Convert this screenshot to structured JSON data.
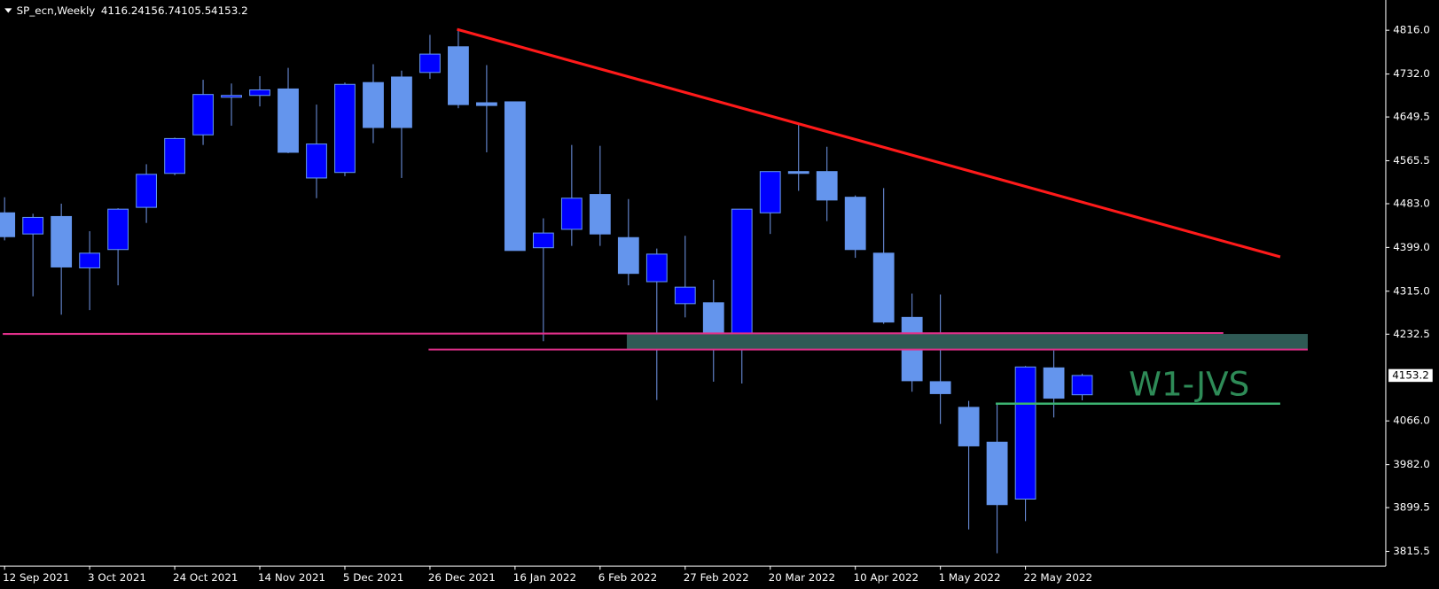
{
  "chart_data": {
    "type": "candlestick",
    "symbol": "SP_ecn,Weekly",
    "annotation": "W1-JVS",
    "categories": [
      "12 Sep 2021",
      null,
      null,
      "3 Oct 2021",
      null,
      null,
      "24 Oct 2021",
      null,
      null,
      "14 Nov 2021",
      null,
      null,
      "5 Dec 2021",
      null,
      null,
      "26 Dec 2021",
      null,
      null,
      "16 Jan 2022",
      null,
      null,
      "6 Feb 2022",
      null,
      null,
      "27 Feb 2022",
      null,
      null,
      "20 Mar 2022",
      null,
      null,
      "10 Apr 2022",
      null,
      null,
      "1 May 2022",
      null,
      null,
      "22 May 2022",
      null,
      null
    ],
    "open": [
      4465.5,
      4424.9,
      4458.4,
      4359.8,
      4395.0,
      4476.0,
      4541.2,
      4615.2,
      4687.4,
      4690.9,
      4703.3,
      4532.4,
      4543.0,
      4715.6,
      4726.2,
      4735.0,
      4784.3,
      4676.8,
      4678.6,
      4398.5,
      4433.8,
      4500.7,
      4417.9,
      4333.3,
      4291.1,
      4292.8,
      4220.6,
      4465.5,
      4544.7,
      4544.7,
      4495.4,
      4388.0,
      4264.7,
      4141.3,
      4092.0,
      4025.1,
      3915.9,
      4167.8,
      4116.2
    ],
    "high": [
      4495.4,
      4463.7,
      4483.1,
      4430.2,
      4474.3,
      4558.8,
      4609.9,
      4720.9,
      4713.8,
      4727.9,
      4743.8,
      4673.3,
      4715.6,
      4750.8,
      4738.5,
      4807.2,
      4819.5,
      4749.1,
      4678.6,
      4454.9,
      4595.8,
      4594.1,
      4491.9,
      4396.8,
      4421.4,
      4336.9,
      4472.5,
      4544.7,
      4638.1,
      4592.3,
      4498.9,
      4513.0,
      4310.4,
      4308.7,
      4104.4,
      4097.3,
      4171.3,
      4201.2,
      4156.7
    ],
    "low": [
      4412.6,
      4305.2,
      4269.9,
      4278.7,
      4326.3,
      4446.1,
      4537.7,
      4595.8,
      4632.8,
      4669.8,
      4580.0,
      4493.6,
      4535.9,
      4599.3,
      4532.4,
      4722.6,
      4666.3,
      4581.7,
      4393.2,
      4218.9,
      4402.0,
      4402.0,
      4326.3,
      4106.1,
      4264.7,
      4141.3,
      4137.8,
      4424.9,
      4507.7,
      4449.6,
      4379.1,
      4252.3,
      4122.0,
      4060.3,
      3857.7,
      3811.9,
      3873.6,
      4072.6,
      4105.5
    ],
    "close": [
      4419.7,
      4456.7,
      4361.5,
      4388.0,
      4472.5,
      4539.4,
      4608.1,
      4692.7,
      4690.9,
      4701.5,
      4581.7,
      4597.6,
      4712.1,
      4629.3,
      4629.3,
      4770.2,
      4673.3,
      4671.6,
      4393.2,
      4426.7,
      4493.6,
      4424.9,
      4349.2,
      4386.2,
      4322.8,
      4206.5,
      4472.5,
      4544.7,
      4541.2,
      4490.1,
      4395.0,
      4255.8,
      4143.1,
      4118.4,
      4018.0,
      3905.3,
      4169.5,
      4109.6,
      4153.2
    ],
    "up_color": "#0000ff",
    "down_color": "#6495ed",
    "wick_color": "#6f94e4",
    "ylim": [
      3787.3,
      4874.1
    ],
    "yticks": [
      {
        "value": 4816,
        "label": "4816.0"
      },
      {
        "value": 4732,
        "label": "4732.0"
      },
      4649.5,
      4565.5,
      {
        "value": 4483,
        "label": "4483.0"
      },
      {
        "value": 4399,
        "label": "4399.0"
      },
      {
        "value": 4315,
        "label": "4315.0"
      },
      4232.5,
      {
        "value": 4066,
        "label": "4066.0"
      },
      {
        "value": 3982,
        "label": "3982.0"
      },
      3899.5,
      3815.5
    ]
  }
}
